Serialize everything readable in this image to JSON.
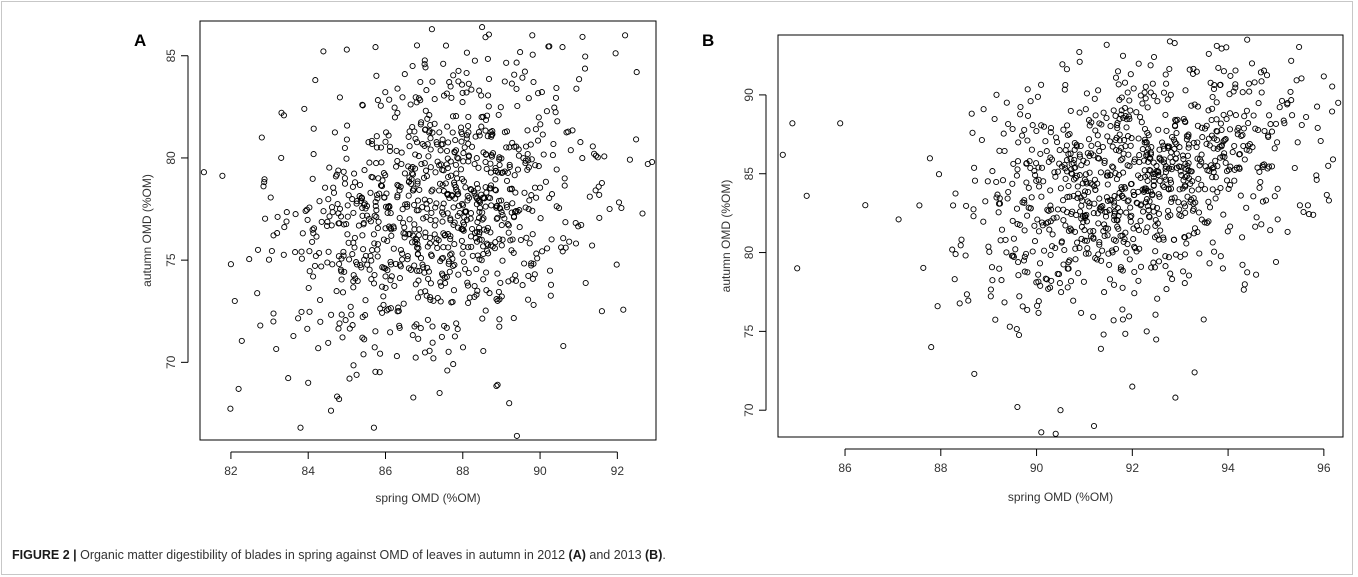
{
  "caption": {
    "label": "FIGURE 2 |",
    "text_1": " Organic matter digestibility of blades in spring against OMD of leaves in autumn in 2012 ",
    "ref_a": "(A)",
    "text_2": " and 2013 ",
    "ref_b": "(B)",
    "text_3": "."
  },
  "chart_data": [
    {
      "panel": "A",
      "type": "scatter",
      "title": "",
      "xlabel": "spring OMD (%OM)",
      "ylabel": "autumn OMD (%OM)",
      "xlim": [
        81.2,
        93.0
      ],
      "ylim": [
        66.2,
        86.7
      ],
      "xticks": [
        82,
        84,
        86,
        88,
        90,
        92
      ],
      "yticks": [
        70,
        75,
        80,
        85
      ],
      "grid": false,
      "legend": "none",
      "marker": "open-circle",
      "n_points": 1000,
      "point_summary": {
        "x_mean": 87.3,
        "x_sd": 1.9,
        "y_mean": 77.6,
        "y_sd": 3.6,
        "correlation": 0.25
      },
      "x": [
        81.3,
        82.0,
        82.1,
        82.2,
        82.7,
        82.8,
        83.1,
        83.3,
        83.8,
        83.9,
        84.0,
        84.2,
        84.8,
        85.0,
        85.4,
        85.7,
        86.5,
        87.2,
        87.4,
        87.6,
        88.5,
        88.9,
        89.2,
        89.4,
        89.8,
        90.6,
        91.6,
        91.8,
        92.2,
        92.5,
        92.9
      ],
      "y": [
        79.3,
        74.8,
        73.0,
        68.7,
        75.5,
        81.0,
        72.0,
        80.0,
        66.8,
        82.4,
        69.0,
        75.2,
        68.2,
        85.3,
        82.6,
        66.8,
        84.1,
        86.3,
        68.5,
        69.6,
        86.4,
        68.9,
        68.0,
        66.4,
        86.0,
        70.8,
        72.5,
        77.5,
        86.0,
        84.2,
        79.8
      ]
    },
    {
      "panel": "B",
      "type": "scatter",
      "title": "",
      "xlabel": "spring OMD (%OM)",
      "ylabel": "autumn OMD (%OM)",
      "xlim": [
        84.6,
        96.4
      ],
      "ylim": [
        68.3,
        93.8
      ],
      "xticks": [
        86,
        88,
        90,
        92,
        94,
        96
      ],
      "yticks": [
        70,
        75,
        80,
        85,
        90
      ],
      "grid": false,
      "legend": "none",
      "marker": "open-circle",
      "n_points": 1000,
      "point_summary": {
        "x_mean": 92.0,
        "x_sd": 1.7,
        "y_mean": 84.5,
        "y_sd": 3.6,
        "correlation": 0.3
      },
      "x": [
        84.7,
        84.9,
        85.0,
        85.2,
        85.9,
        87.8,
        88.7,
        89.6,
        90.1,
        90.4,
        90.5,
        90.9,
        91.2,
        91.4,
        91.7,
        92.0,
        92.3,
        92.9,
        93.3,
        94.4,
        94.5,
        95.0,
        95.5,
        96.3
      ],
      "y": [
        86.2,
        88.2,
        79.0,
        83.6,
        88.2,
        74.0,
        72.3,
        70.2,
        68.6,
        68.5,
        70.0,
        92.1,
        69.0,
        74.8,
        91.5,
        71.5,
        75.0,
        70.8,
        72.4,
        93.5,
        92.0,
        79.4,
        83.0,
        89.5
      ]
    }
  ]
}
